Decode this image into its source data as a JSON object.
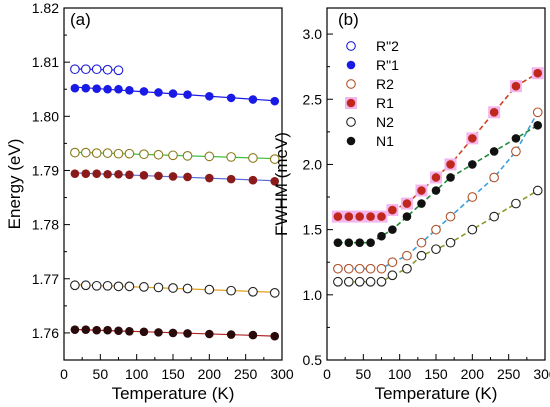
{
  "chart_data": [
    {
      "type": "scatter",
      "panel_label": "(a)",
      "xlabel": "Temperature (K)",
      "ylabel": "Energy (eV)",
      "xlim": [
        0,
        300
      ],
      "ylim": [
        1.755,
        1.82
      ],
      "xticks": [
        0,
        50,
        100,
        150,
        200,
        250,
        300
      ],
      "yticks": [
        1.76,
        1.77,
        1.78,
        1.79,
        1.8,
        1.81,
        1.82
      ],
      "ytick_labels": [
        "1.76",
        "1.77",
        "1.78",
        "1.79",
        "1.80",
        "1.81",
        "1.82"
      ],
      "grid": false,
      "legend": "none",
      "series": [
        {
          "marker": "open",
          "color": "#1f1fd6",
          "line_color": "#1f1fd6",
          "x": [
            15,
            30,
            45,
            60,
            75
          ],
          "y": [
            1.8087,
            1.8087,
            1.8087,
            1.8086,
            1.8085
          ]
        },
        {
          "marker": "filled",
          "color": "#1a1ae6",
          "line_color": "#1a1ae6",
          "x": [
            15,
            30,
            45,
            60,
            75,
            90,
            110,
            130,
            150,
            170,
            200,
            230,
            260,
            290
          ],
          "y": [
            1.8052,
            1.8052,
            1.8051,
            1.805,
            1.805,
            1.8048,
            1.8046,
            1.8044,
            1.8042,
            1.804,
            1.8037,
            1.8034,
            1.8031,
            1.8028
          ]
        },
        {
          "marker": "open",
          "color": "#8a7a1a",
          "line_color": "#3fbf3f",
          "x": [
            15,
            30,
            45,
            60,
            75,
            90,
            110,
            130,
            150,
            170,
            200,
            230,
            260,
            290
          ],
          "y": [
            1.7933,
            1.7933,
            1.7932,
            1.7932,
            1.7931,
            1.7931,
            1.793,
            1.7929,
            1.7928,
            1.7927,
            1.7926,
            1.7925,
            1.7923,
            1.7921
          ]
        },
        {
          "marker": "filled",
          "color": "#8b1a1a",
          "line_color": "#5b6bd6",
          "x": [
            15,
            30,
            45,
            60,
            75,
            90,
            110,
            130,
            150,
            170,
            200,
            230,
            260,
            290
          ],
          "y": [
            1.7894,
            1.7894,
            1.7894,
            1.7893,
            1.7893,
            1.7892,
            1.7891,
            1.789,
            1.7889,
            1.7888,
            1.7886,
            1.7884,
            1.7882,
            1.788
          ]
        },
        {
          "marker": "open",
          "color": "#222222",
          "line_color": "#e0a020",
          "x": [
            15,
            30,
            45,
            60,
            75,
            90,
            110,
            130,
            150,
            170,
            200,
            230,
            260,
            290
          ],
          "y": [
            1.7688,
            1.7688,
            1.7687,
            1.7687,
            1.7686,
            1.7686,
            1.7685,
            1.7684,
            1.7683,
            1.7682,
            1.768,
            1.7678,
            1.7676,
            1.7674
          ]
        },
        {
          "marker": "filled",
          "color": "#2a0a0a",
          "line_color": "#b02020",
          "x": [
            15,
            30,
            45,
            60,
            75,
            90,
            110,
            130,
            150,
            170,
            200,
            230,
            260,
            290
          ],
          "y": [
            1.7606,
            1.7606,
            1.7605,
            1.7605,
            1.7604,
            1.7603,
            1.7602,
            1.7601,
            1.76,
            1.7599,
            1.7598,
            1.7597,
            1.7596,
            1.7594
          ]
        }
      ]
    },
    {
      "type": "scatter",
      "panel_label": "(b)",
      "xlabel": "Temperature (K)",
      "ylabel": "FWHM (meV)",
      "xlim": [
        0,
        300
      ],
      "ylim": [
        0.5,
        3.2
      ],
      "xticks": [
        0,
        50,
        100,
        150,
        200,
        250,
        300
      ],
      "yticks": [
        0.5,
        1.0,
        1.5,
        2.0,
        2.5,
        3.0
      ],
      "ytick_labels": [
        "0.5",
        "1.0",
        "1.5",
        "2.0",
        "2.5",
        "3.0"
      ],
      "grid": false,
      "legend": "top-left",
      "series": [
        {
          "name": "R\"2",
          "marker": "open",
          "color": "#1f1fd6",
          "x": [],
          "y": []
        },
        {
          "name": "R\"1",
          "marker": "filled",
          "color": "#1a1ae6",
          "x": [],
          "y": []
        },
        {
          "name": "R2",
          "marker": "open",
          "color": "#b0522a",
          "line_color": "#3aa0e0",
          "x": [
            15,
            30,
            45,
            60,
            75,
            90,
            110,
            130,
            150,
            170,
            200,
            230,
            260,
            290
          ],
          "y": [
            1.2,
            1.2,
            1.2,
            1.2,
            1.2,
            1.25,
            1.3,
            1.4,
            1.5,
            1.6,
            1.75,
            1.9,
            2.1,
            2.4
          ]
        },
        {
          "name": "R1",
          "marker": "filled-halo",
          "color": "#c0281e",
          "line_color": "#d04020",
          "x": [
            15,
            30,
            45,
            60,
            75,
            90,
            110,
            130,
            150,
            170,
            200,
            230,
            260,
            290
          ],
          "y": [
            1.6,
            1.6,
            1.6,
            1.6,
            1.6,
            1.65,
            1.7,
            1.8,
            1.9,
            2.0,
            2.2,
            2.4,
            2.6,
            2.7
          ]
        },
        {
          "name": "N2",
          "marker": "open",
          "color": "#222222",
          "line_color": "#8a9a2a",
          "x": [
            15,
            30,
            45,
            60,
            75,
            90,
            110,
            130,
            150,
            170,
            200,
            230,
            260,
            290
          ],
          "y": [
            1.1,
            1.1,
            1.1,
            1.1,
            1.1,
            1.15,
            1.2,
            1.3,
            1.35,
            1.4,
            1.5,
            1.6,
            1.7,
            1.8
          ]
        },
        {
          "name": "N1",
          "marker": "filled",
          "color": "#111111",
          "line_color": "#208a3a",
          "x": [
            15,
            30,
            45,
            60,
            75,
            90,
            110,
            130,
            150,
            170,
            200,
            230,
            260,
            290
          ],
          "y": [
            1.4,
            1.4,
            1.4,
            1.4,
            1.45,
            1.5,
            1.6,
            1.7,
            1.8,
            1.9,
            2.0,
            2.1,
            2.2,
            2.3
          ]
        }
      ]
    }
  ]
}
